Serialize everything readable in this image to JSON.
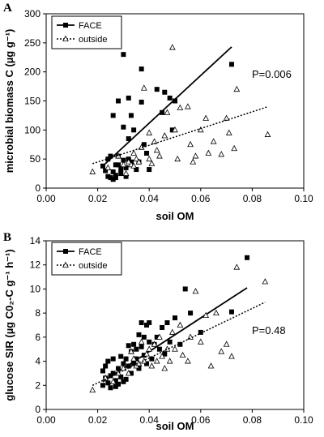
{
  "chart_data": [
    {
      "type": "scatter",
      "panel_label": "A",
      "xlabel": "soil OM",
      "ylabel": "microbial biomass C (µg g⁻¹)",
      "xlim": [
        0,
        0.1
      ],
      "ylim": [
        0,
        300
      ],
      "x_ticks": [
        "0.00",
        "0.02",
        "0.04",
        "0.06",
        "0.08",
        "0.10"
      ],
      "y_ticks": [
        "0",
        "50",
        "100",
        "150",
        "200",
        "250",
        "300"
      ],
      "legend_position": "top-left",
      "annotation": "P=0.006",
      "series": [
        {
          "name": "FACE",
          "marker": "filled-square",
          "line": "solid",
          "trendline": [
            [
              0.022,
              38
            ],
            [
              0.072,
              243
            ]
          ],
          "points": [
            [
              0.022,
              38
            ],
            [
              0.023,
              30
            ],
            [
              0.024,
              50
            ],
            [
              0.024,
              20
            ],
            [
              0.025,
              55
            ],
            [
              0.025,
              18
            ],
            [
              0.026,
              125
            ],
            [
              0.026,
              28
            ],
            [
              0.026,
              15
            ],
            [
              0.027,
              40
            ],
            [
              0.027,
              22
            ],
            [
              0.027,
              18
            ],
            [
              0.028,
              150
            ],
            [
              0.028,
              55
            ],
            [
              0.028,
              40
            ],
            [
              0.029,
              32
            ],
            [
              0.029,
              25
            ],
            [
              0.03,
              230
            ],
            [
              0.03,
              105
            ],
            [
              0.03,
              48
            ],
            [
              0.031,
              35
            ],
            [
              0.031,
              20
            ],
            [
              0.032,
              155
            ],
            [
              0.032,
              85
            ],
            [
              0.032,
              50
            ],
            [
              0.033,
              125
            ],
            [
              0.033,
              45
            ],
            [
              0.034,
              100
            ],
            [
              0.035,
              32
            ],
            [
              0.036,
              45
            ],
            [
              0.037,
              205
            ],
            [
              0.037,
              148
            ],
            [
              0.038,
              75
            ],
            [
              0.039,
              60
            ],
            [
              0.04,
              32
            ],
            [
              0.043,
              170
            ],
            [
              0.045,
              130
            ],
            [
              0.046,
              165
            ],
            [
              0.048,
              155
            ],
            [
              0.049,
              100
            ],
            [
              0.05,
              150
            ],
            [
              0.072,
              213
            ]
          ]
        },
        {
          "name": "outside",
          "marker": "open-triangle",
          "line": "dotted",
          "trendline": [
            [
              0.018,
              42
            ],
            [
              0.086,
              140
            ]
          ],
          "points": [
            [
              0.018,
              28
            ],
            [
              0.024,
              35
            ],
            [
              0.028,
              55
            ],
            [
              0.03,
              40
            ],
            [
              0.031,
              25
            ],
            [
              0.032,
              45
            ],
            [
              0.033,
              40
            ],
            [
              0.034,
              60
            ],
            [
              0.034,
              38
            ],
            [
              0.035,
              50
            ],
            [
              0.036,
              45
            ],
            [
              0.037,
              70
            ],
            [
              0.038,
              172
            ],
            [
              0.04,
              50
            ],
            [
              0.04,
              95
            ],
            [
              0.041,
              42
            ],
            [
              0.042,
              80
            ],
            [
              0.043,
              65
            ],
            [
              0.044,
              55
            ],
            [
              0.046,
              90
            ],
            [
              0.047,
              130
            ],
            [
              0.049,
              242
            ],
            [
              0.05,
              100
            ],
            [
              0.051,
              50
            ],
            [
              0.052,
              138
            ],
            [
              0.055,
              140
            ],
            [
              0.056,
              75
            ],
            [
              0.057,
              45
            ],
            [
              0.058,
              55
            ],
            [
              0.06,
              100
            ],
            [
              0.062,
              120
            ],
            [
              0.063,
              60
            ],
            [
              0.065,
              80
            ],
            [
              0.068,
              58
            ],
            [
              0.07,
              120
            ],
            [
              0.071,
              95
            ],
            [
              0.073,
              68
            ],
            [
              0.074,
              170
            ],
            [
              0.086,
              92
            ]
          ]
        }
      ]
    },
    {
      "type": "scatter",
      "panel_label": "B",
      "xlabel": "soil OM",
      "ylabel": "glucose SIR (µg C0₂-C g⁻¹ h⁻¹)",
      "xlim": [
        0,
        0.1
      ],
      "ylim": [
        0,
        14
      ],
      "x_ticks": [
        "0.00",
        "0.02",
        "0.04",
        "0.06",
        "0.08",
        "0.10"
      ],
      "y_ticks": [
        "0",
        "2",
        "4",
        "6",
        "8",
        "10",
        "12",
        "14"
      ],
      "legend_position": "top-left",
      "annotation": "P=0.48",
      "series": [
        {
          "name": "FACE",
          "marker": "filled-square",
          "line": "solid",
          "trendline": [
            [
              0.022,
              2.3
            ],
            [
              0.078,
              10.1
            ]
          ],
          "points": [
            [
              0.022,
              2.0
            ],
            [
              0.022,
              3.2
            ],
            [
              0.023,
              2.6
            ],
            [
              0.023,
              3.6
            ],
            [
              0.024,
              2.2
            ],
            [
              0.024,
              4.0
            ],
            [
              0.025,
              2.8
            ],
            [
              0.025,
              1.8
            ],
            [
              0.026,
              3.0
            ],
            [
              0.026,
              4.2
            ],
            [
              0.027,
              2.4
            ],
            [
              0.027,
              1.9
            ],
            [
              0.028,
              3.4
            ],
            [
              0.028,
              2.1
            ],
            [
              0.029,
              4.4
            ],
            [
              0.029,
              2.7
            ],
            [
              0.03,
              3.8
            ],
            [
              0.03,
              2.3
            ],
            [
              0.031,
              4.2
            ],
            [
              0.031,
              2.5
            ],
            [
              0.032,
              3.6
            ],
            [
              0.032,
              5.3
            ],
            [
              0.033,
              3.0
            ],
            [
              0.033,
              4.8
            ],
            [
              0.034,
              5.4
            ],
            [
              0.034,
              3.8
            ],
            [
              0.035,
              5.0
            ],
            [
              0.035,
              4.2
            ],
            [
              0.036,
              6.2
            ],
            [
              0.036,
              3.4
            ],
            [
              0.037,
              5.2
            ],
            [
              0.037,
              7.2
            ],
            [
              0.038,
              4.5
            ],
            [
              0.038,
              6.0
            ],
            [
              0.039,
              7.0
            ],
            [
              0.039,
              3.8
            ],
            [
              0.04,
              5.6
            ],
            [
              0.04,
              7.2
            ],
            [
              0.041,
              4.2
            ],
            [
              0.042,
              5.4
            ],
            [
              0.043,
              6.0
            ],
            [
              0.044,
              5.0
            ],
            [
              0.045,
              6.8
            ],
            [
              0.046,
              4.6
            ],
            [
              0.047,
              7.2
            ],
            [
              0.048,
              5.6
            ],
            [
              0.05,
              7.6
            ],
            [
              0.052,
              5.4
            ],
            [
              0.054,
              10.0
            ],
            [
              0.056,
              8.0
            ],
            [
              0.06,
              6.4
            ],
            [
              0.072,
              8.1
            ],
            [
              0.078,
              12.6
            ]
          ]
        },
        {
          "name": "outside",
          "marker": "open-triangle",
          "line": "dotted",
          "trendline": [
            [
              0.018,
              2.0
            ],
            [
              0.085,
              8.9
            ]
          ],
          "points": [
            [
              0.018,
              1.6
            ],
            [
              0.023,
              2.6
            ],
            [
              0.026,
              2.3
            ],
            [
              0.028,
              3.0
            ],
            [
              0.03,
              3.4
            ],
            [
              0.032,
              3.0
            ],
            [
              0.033,
              4.8
            ],
            [
              0.034,
              4.2
            ],
            [
              0.035,
              3.6
            ],
            [
              0.036,
              3.8
            ],
            [
              0.037,
              5.6
            ],
            [
              0.038,
              4.0
            ],
            [
              0.039,
              4.6
            ],
            [
              0.04,
              5.0
            ],
            [
              0.041,
              3.6
            ],
            [
              0.042,
              5.4
            ],
            [
              0.043,
              4.0
            ],
            [
              0.044,
              6.0
            ],
            [
              0.045,
              4.4
            ],
            [
              0.046,
              3.4
            ],
            [
              0.047,
              5.0
            ],
            [
              0.048,
              4.0
            ],
            [
              0.049,
              6.4
            ],
            [
              0.05,
              5.0
            ],
            [
              0.052,
              7.0
            ],
            [
              0.053,
              4.5
            ],
            [
              0.055,
              4.0
            ],
            [
              0.056,
              6.0
            ],
            [
              0.058,
              9.8
            ],
            [
              0.06,
              5.6
            ],
            [
              0.062,
              7.8
            ],
            [
              0.064,
              3.6
            ],
            [
              0.066,
              8.0
            ],
            [
              0.068,
              4.8
            ],
            [
              0.07,
              5.4
            ],
            [
              0.072,
              4.4
            ],
            [
              0.074,
              11.8
            ],
            [
              0.085,
              10.6
            ]
          ]
        }
      ]
    }
  ]
}
